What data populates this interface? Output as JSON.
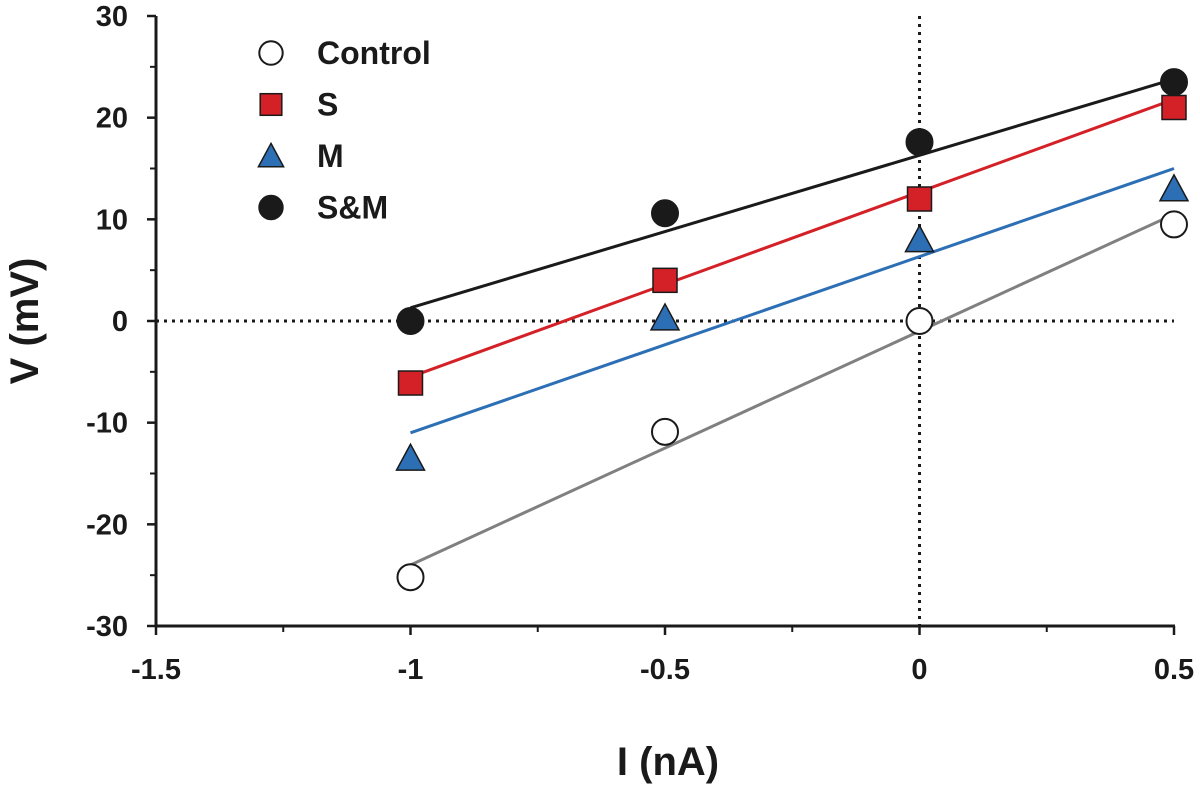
{
  "chart_data": {
    "type": "scatter",
    "title": "",
    "xlabel": "I (nA)",
    "ylabel": "V (mV)",
    "xlim": [
      -1.5,
      0.5
    ],
    "ylim": [
      -30,
      30
    ],
    "x_major_ticks": [
      -1.5,
      -1,
      -0.5,
      0,
      0.5
    ],
    "x_tick_labels": [
      "-1.5",
      "-1",
      "-0.5",
      "0",
      "0.5"
    ],
    "y_major_ticks": [
      -30,
      -20,
      -10,
      0,
      10,
      20,
      30
    ],
    "y_tick_labels": [
      "-30",
      "-20",
      "-10",
      "0",
      "10",
      "20",
      "30"
    ],
    "reference_lines": {
      "x": 0,
      "y": 0,
      "style": "dotted"
    },
    "legend_position": "top-left",
    "series": [
      {
        "name": "Control",
        "marker": "circle-open",
        "color": "#ffffff",
        "line_color": "#808080",
        "x": [
          -1,
          -0.5,
          0,
          0.5
        ],
        "y": [
          -25.2,
          -10.9,
          0,
          9.5
        ],
        "fit": {
          "x": [
            -1,
            0.5
          ],
          "y": [
            -24,
            10.5
          ]
        }
      },
      {
        "name": "S",
        "marker": "square",
        "color": "#d42027",
        "line_color": "#d42027",
        "x": [
          -1,
          -0.5,
          0,
          0.5
        ],
        "y": [
          -6.1,
          4.0,
          12.0,
          21.0
        ],
        "fit": {
          "x": [
            -1,
            0.5
          ],
          "y": [
            -5.5,
            21.8
          ]
        }
      },
      {
        "name": "M",
        "marker": "triangle",
        "color": "#2d6fb5",
        "line_color": "#2d6fb5",
        "x": [
          -1,
          -0.5,
          0,
          0.5
        ],
        "y": [
          -13.5,
          0.3,
          8.0,
          13.0
        ],
        "fit": {
          "x": [
            -1,
            0.5
          ],
          "y": [
            -11,
            15
          ]
        }
      },
      {
        "name": "S&M",
        "marker": "circle",
        "color": "#1a1a1a",
        "line_color": "#1a1a1a",
        "x": [
          -1,
          -0.5,
          0,
          0.5
        ],
        "y": [
          0,
          10.6,
          17.6,
          23.5
        ],
        "fit": {
          "x": [
            -1,
            0.5
          ],
          "y": [
            1.3,
            23.8
          ]
        }
      }
    ]
  }
}
